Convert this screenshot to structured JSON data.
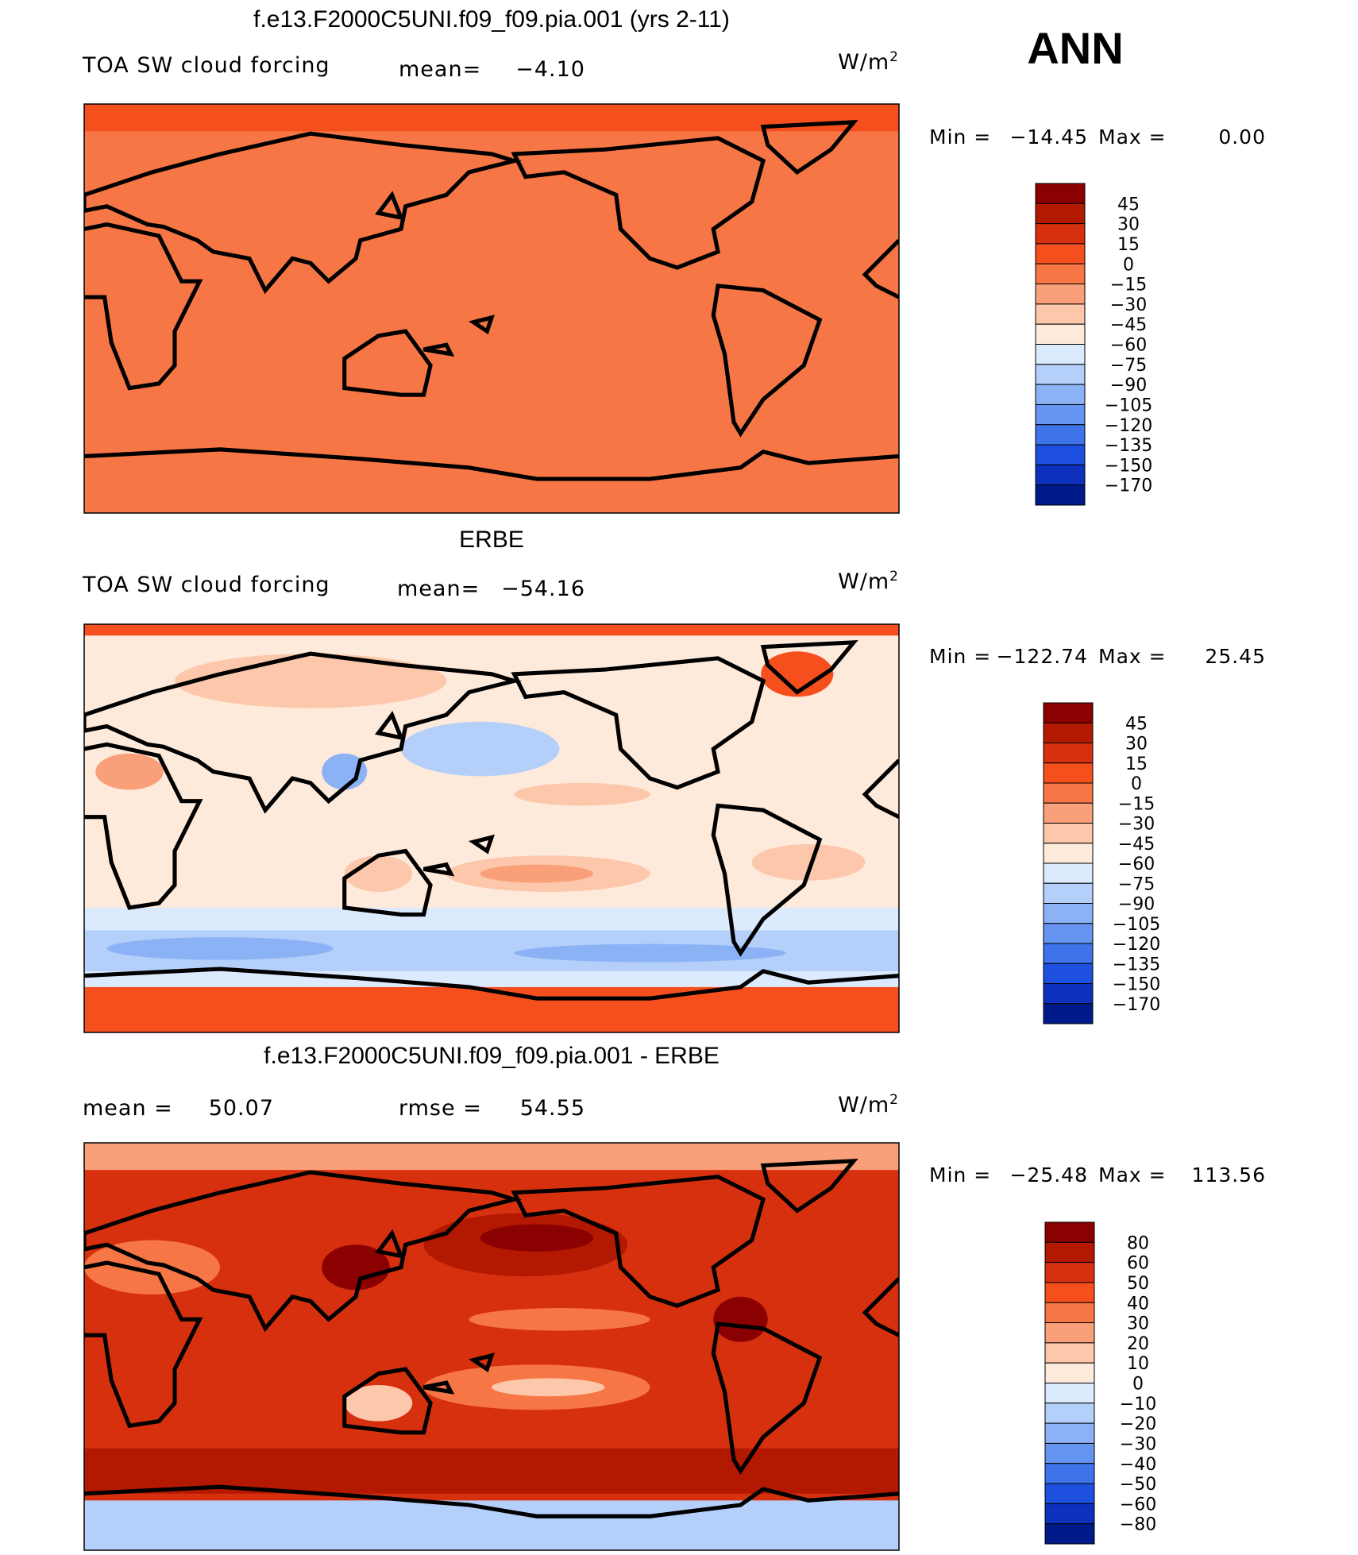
{
  "case": "ANN",
  "palette": [
    "#8b0000",
    "#b31800",
    "#d7300f",
    "#f64f1e",
    "#f77645",
    "#f9a07a",
    "#fcc7aa",
    "#feeadb",
    "#dbeafd",
    "#b3cffa",
    "#8cb2f6",
    "#6694f1",
    "#3e73ea",
    "#1e50e0",
    "#0d30bd",
    "#001a8a"
  ],
  "panels": [
    {
      "title": "f.e13.F2000C5UNI.f09_f09.pia.001 (yrs 2-11)",
      "left_label": "TOA SW cloud forcing",
      "stat_label": "mean=",
      "stat": "−4.10",
      "units": "W/m",
      "units_sup": "2",
      "min_label": "Min =",
      "min": "−14.45",
      "max_label": "Max =",
      "max": "0.00",
      "levels": [
        "45",
        "30",
        "15",
        "0",
        "−15",
        "−30",
        "−45",
        "−60",
        "−75",
        "−90",
        "−105",
        "−120",
        "−135",
        "−150",
        "−170"
      ]
    },
    {
      "title": "ERBE",
      "left_label": "TOA SW cloud forcing",
      "stat_label": "mean=",
      "stat": "−54.16",
      "units": "W/m",
      "units_sup": "2",
      "min_label": "Min =",
      "min": "−122.74",
      "max_label": "Max =",
      "max": "25.45",
      "levels": [
        "45",
        "30",
        "15",
        "0",
        "−15",
        "−30",
        "−45",
        "−60",
        "−75",
        "−90",
        "−105",
        "−120",
        "−135",
        "−150",
        "−170"
      ]
    },
    {
      "title": "f.e13.F2000C5UNI.f09_f09.pia.001 - ERBE",
      "left_label": "mean =",
      "left_value": "50.07",
      "stat_label": "rmse =",
      "stat": "54.55",
      "units": "W/m",
      "units_sup": "2",
      "min_label": "Min =",
      "min": "−25.48",
      "max_label": "Max =",
      "max": "113.56",
      "levels": [
        "80",
        "60",
        "50",
        "40",
        "30",
        "20",
        "10",
        "0",
        "−10",
        "−20",
        "−30",
        "−40",
        "−50",
        "−60",
        "−80"
      ]
    }
  ]
}
